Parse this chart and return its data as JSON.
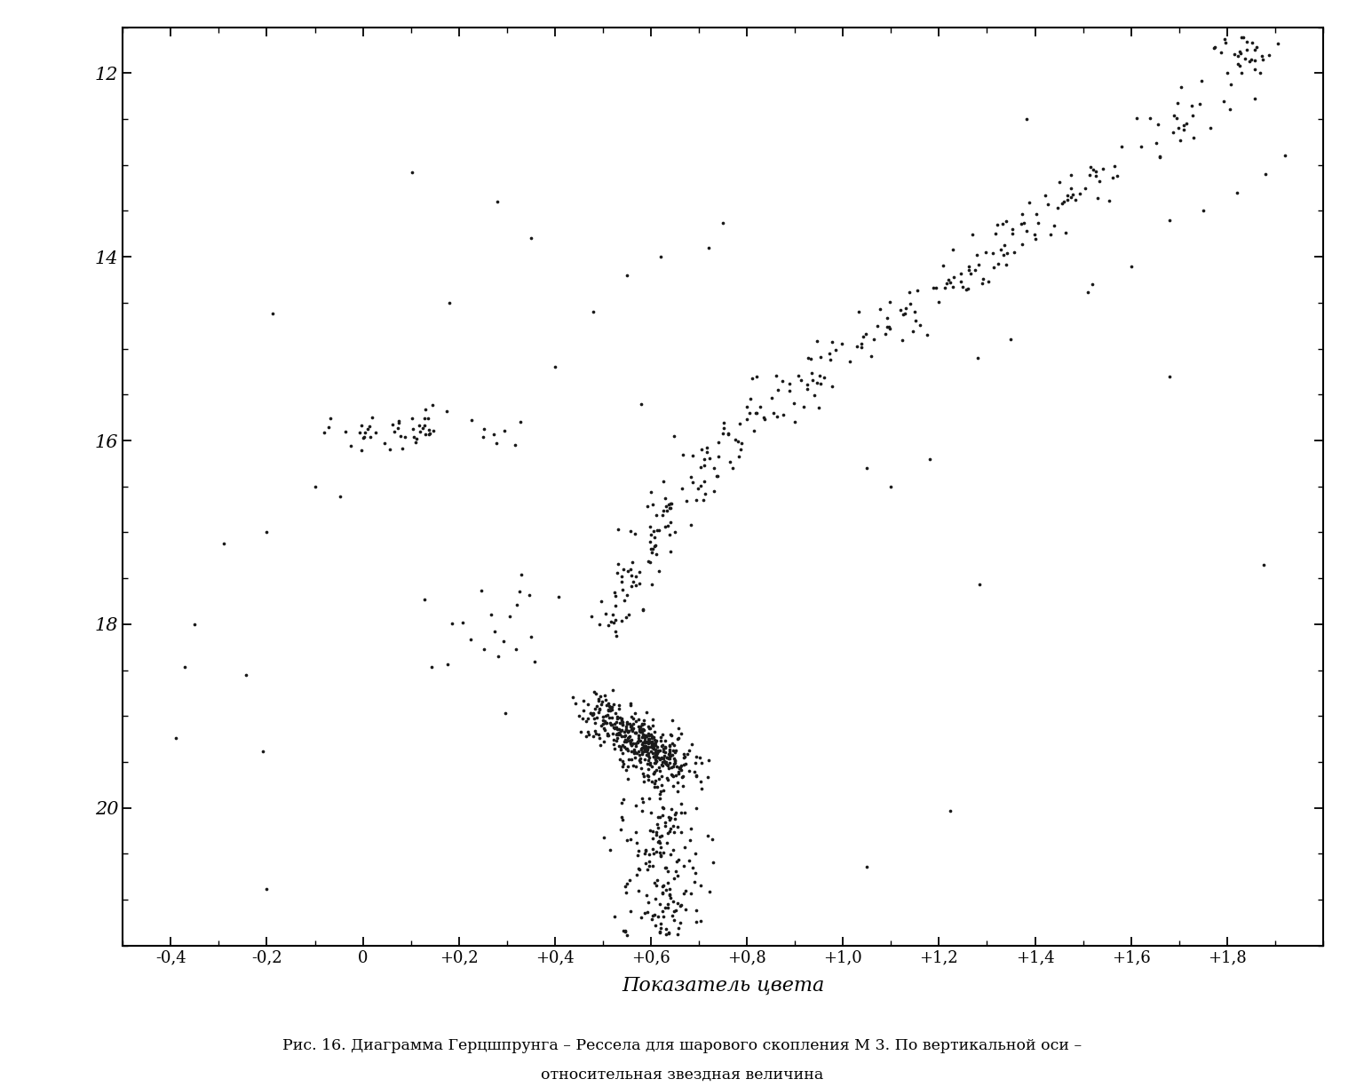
{
  "xlabel": "Показатель цвета",
  "caption_line1": "Рис. 16. Диаграмма Герцшпрунга – Рессела для шарового скопления М 3. По вертикальной оси –",
  "caption_line2": "относительная звездная величина",
  "xlim": [
    -0.5,
    2.0
  ],
  "ylim": [
    21.5,
    11.5
  ],
  "xticks": [
    -0.4,
    -0.2,
    0.0,
    0.2,
    0.4,
    0.6,
    0.8,
    1.0,
    1.2,
    1.4,
    1.6,
    1.8
  ],
  "xtick_labels": [
    "-0,4",
    "-0,2",
    "0",
    "+0,2",
    "+0,4",
    "+0,6",
    "+0,8",
    "+1,0",
    "+1,2",
    "+1,4",
    "+1,6",
    "+1,8"
  ],
  "yticks": [
    12,
    14,
    16,
    18,
    20
  ],
  "ytick_labels": [
    "12",
    "14",
    "16",
    "18",
    "20"
  ],
  "dot_color": "#1a1a1a",
  "dot_size": 7,
  "background_color": "#ffffff"
}
